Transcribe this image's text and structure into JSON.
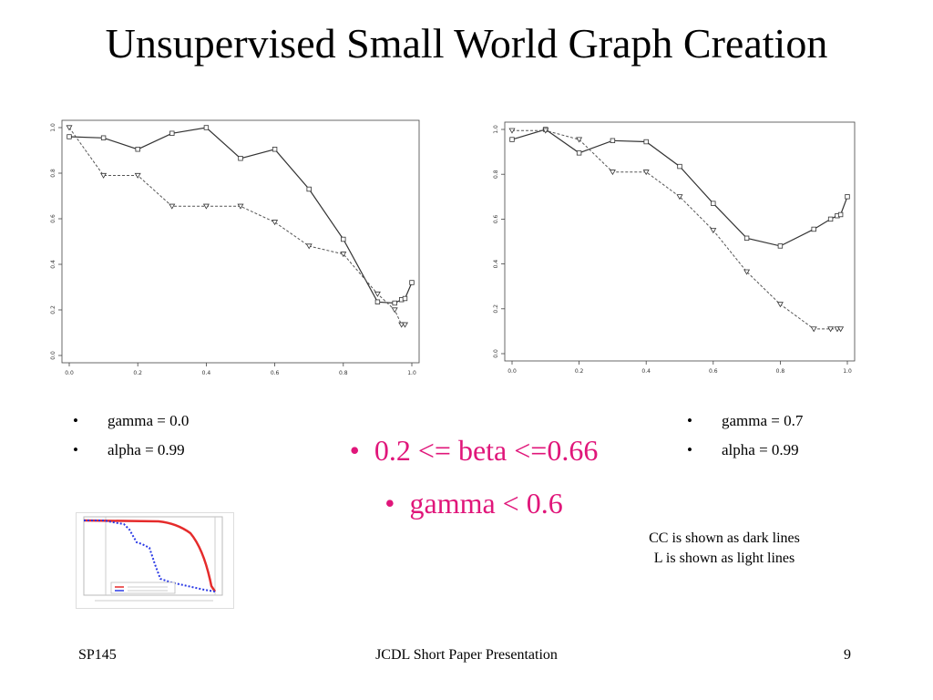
{
  "slide": {
    "title": "Unsupervised Small World Graph Creation",
    "left_params": [
      "gamma = 0.0",
      "alpha = 0.99"
    ],
    "right_params": [
      "gamma = 0.7",
      "alpha = 0.99"
    ],
    "center_bullets": [
      "0.2 <= beta <=0.66",
      "gamma < 0.6"
    ],
    "bullet_symbol": "•",
    "note_lines": [
      "CC is shown as dark lines",
      "L is shown as light lines"
    ],
    "accent_color": "#e0167a"
  },
  "footer": {
    "left": "SP145",
    "center": "JCDL Short Paper Presentation",
    "page": "9"
  },
  "chart_data": [
    {
      "type": "line",
      "xlim": [
        0,
        1
      ],
      "ylim": [
        0,
        1
      ],
      "x_ticks": [
        "0.0",
        "0.2",
        "0.4",
        "0.6",
        "0.8",
        "1.0"
      ],
      "y_ticks": [
        "0.0",
        "0.2",
        "0.4",
        "0.6",
        "0.8",
        "1.0"
      ],
      "grid": false,
      "series": [
        {
          "style": "solid",
          "marker": "square",
          "x": [
            0.0,
            0.1,
            0.2,
            0.3,
            0.4,
            0.5,
            0.6,
            0.7,
            0.8,
            0.9,
            0.95,
            0.97,
            0.98,
            1.0
          ],
          "y": [
            0.96,
            0.955,
            0.905,
            0.975,
            1.0,
            0.865,
            0.905,
            0.73,
            0.51,
            0.235,
            0.23,
            0.245,
            0.25,
            0.32
          ]
        },
        {
          "style": "dashed",
          "marker": "triangle-down",
          "x": [
            0.0,
            0.1,
            0.2,
            0.3,
            0.4,
            0.5,
            0.6,
            0.7,
            0.8,
            0.9,
            0.95,
            0.97,
            0.98
          ],
          "y": [
            1.0,
            0.79,
            0.79,
            0.655,
            0.655,
            0.655,
            0.585,
            0.48,
            0.445,
            0.27,
            0.2,
            0.135,
            0.135
          ]
        }
      ]
    },
    {
      "type": "line",
      "xlim": [
        0,
        1
      ],
      "ylim": [
        0,
        1
      ],
      "x_ticks": [
        "0.0",
        "0.2",
        "0.4",
        "0.6",
        "0.8",
        "1.0"
      ],
      "y_ticks": [
        "0.0",
        "0.2",
        "0.4",
        "0.6",
        "0.8",
        "1.0"
      ],
      "grid": false,
      "series": [
        {
          "style": "solid",
          "marker": "square",
          "x": [
            0.0,
            0.1,
            0.2,
            0.3,
            0.4,
            0.5,
            0.6,
            0.7,
            0.8,
            0.9,
            0.95,
            0.97,
            0.98,
            1.0
          ],
          "y": [
            0.955,
            1.0,
            0.895,
            0.95,
            0.945,
            0.835,
            0.67,
            0.515,
            0.48,
            0.555,
            0.6,
            0.615,
            0.62,
            0.7
          ]
        },
        {
          "style": "dashed",
          "marker": "triangle-down",
          "x": [
            0.0,
            0.1,
            0.2,
            0.3,
            0.4,
            0.5,
            0.6,
            0.7,
            0.8,
            0.9,
            0.95,
            0.97,
            0.98
          ],
          "y": [
            0.995,
            0.995,
            0.955,
            0.81,
            0.81,
            0.7,
            0.55,
            0.365,
            0.22,
            0.11,
            0.11,
            0.11,
            0.11
          ]
        }
      ]
    }
  ]
}
